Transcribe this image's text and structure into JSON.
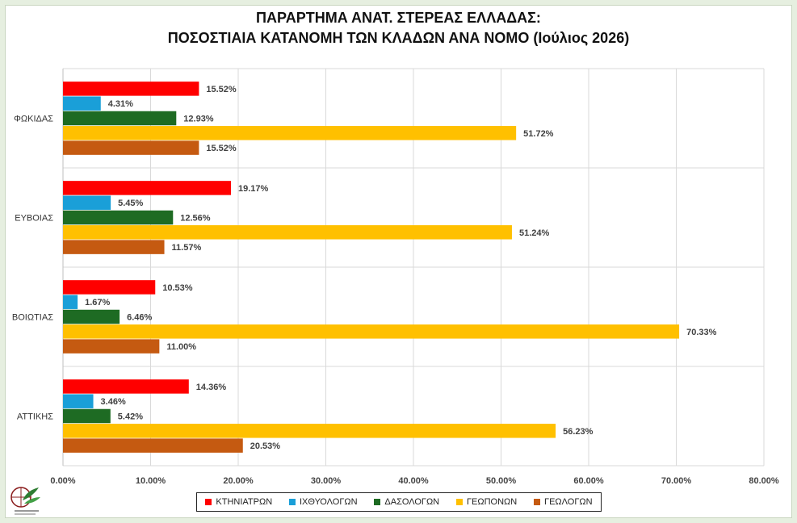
{
  "chart_data": {
    "type": "bar",
    "orientation": "horizontal",
    "title_line1": "ΠΑΡΑΡΤΗΜΑ ΑΝΑΤ. ΣΤΕΡΕΑΣ ΕΛΛΑΔΑΣ:",
    "title_line2": "ΠΟΣΟΣΤΙΑΙΑ ΚΑΤΑΝΟΜΗ ΤΩΝ ΚΛΑΔΩΝ ΑΝΑ ΝΟΜΟ (Ιούλιος 2026)",
    "categories": [
      "ΦΩΚΙΔΑΣ",
      "ΕΥΒΟΙΑΣ",
      "ΒΟΙΩΤΙΑΣ",
      "ΑΤΤΙΚΗΣ"
    ],
    "series": [
      {
        "name": "ΚΤΗΝΙΑΤΡΩΝ",
        "color": "#ff0000",
        "values": [
          15.52,
          19.17,
          10.53,
          14.36
        ]
      },
      {
        "name": "ΙΧΘΥΟΛΟΓΩΝ",
        "color": "#1a9fd8",
        "values": [
          4.31,
          5.45,
          1.67,
          3.46
        ]
      },
      {
        "name": "ΔΑΣΟΛΟΓΩΝ",
        "color": "#1e6b23",
        "values": [
          12.93,
          12.56,
          6.46,
          5.42
        ]
      },
      {
        "name": "ΓΕΩΠΟΝΩΝ",
        "color": "#ffc000",
        "values": [
          51.72,
          51.24,
          70.33,
          56.23
        ]
      },
      {
        "name": "ΓΕΩΛΟΓΩΝ",
        "color": "#c55a11",
        "values": [
          15.52,
          11.57,
          11.0,
          20.53
        ]
      }
    ],
    "xlim": [
      0,
      80
    ],
    "xticks": [
      "0.00%",
      "10.00%",
      "20.00%",
      "30.00%",
      "40.00%",
      "50.00%",
      "60.00%",
      "70.00%",
      "80.00%"
    ],
    "value_suffix": "%",
    "grid": true,
    "legend_position": "bottom"
  }
}
